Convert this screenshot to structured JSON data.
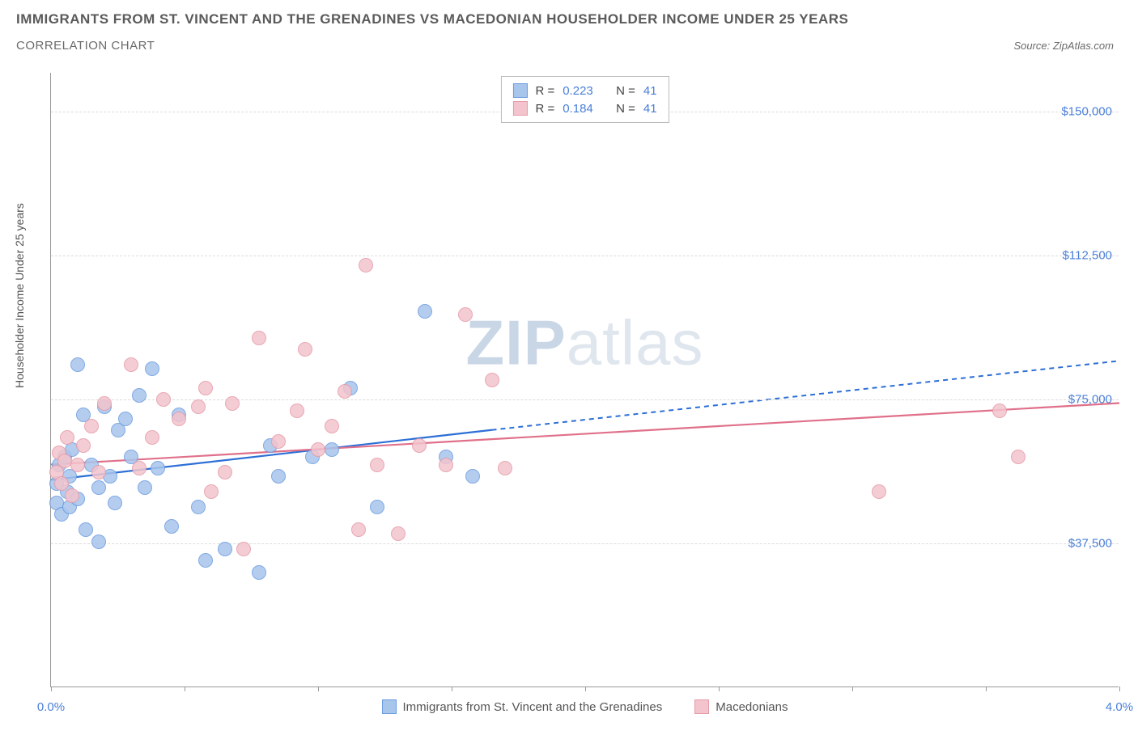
{
  "header": {
    "title": "IMMIGRANTS FROM ST. VINCENT AND THE GRENADINES VS MACEDONIAN HOUSEHOLDER INCOME UNDER 25 YEARS",
    "subtitle": "CORRELATION CHART",
    "source_prefix": "Source: ",
    "source_name": "ZipAtlas.com"
  },
  "chart": {
    "type": "scatter",
    "y_axis_label": "Householder Income Under 25 years",
    "xlim": [
      0,
      4.0
    ],
    "ylim": [
      0,
      160000
    ],
    "y_ticks": [
      {
        "v": 37500,
        "label": "$37,500"
      },
      {
        "v": 75000,
        "label": "$75,000"
      },
      {
        "v": 112500,
        "label": "$112,500"
      },
      {
        "v": 150000,
        "label": "$150,000"
      }
    ],
    "x_ticks": [
      0,
      0.5,
      1.0,
      1.5,
      2.0,
      2.5,
      3.0,
      3.5,
      4.0
    ],
    "x_tick_labels": {
      "0": "0.0%",
      "4": "4.0%"
    },
    "grid_color": "#dcdcdc",
    "background_color": "#ffffff",
    "point_radius": 9,
    "point_stroke_width": 1.5,
    "point_fill_opacity": 0.22,
    "series": [
      {
        "key": "svg",
        "label": "Immigrants from St. Vincent and the Grenadines",
        "stroke": "#6a9be0",
        "fill": "#a8c5ec",
        "line_color": "#2d6fd6",
        "trend": {
          "x1": 0,
          "y1": 54000,
          "x2": 1.65,
          "y2": 67000,
          "x2_ext": 4.0,
          "y2_ext": 85000
        },
        "R": "0.223",
        "N": "41",
        "points": [
          [
            0.02,
            48000
          ],
          [
            0.02,
            53000
          ],
          [
            0.03,
            58000
          ],
          [
            0.04,
            45000
          ],
          [
            0.05,
            60000
          ],
          [
            0.06,
            51000
          ],
          [
            0.07,
            55000
          ],
          [
            0.07,
            47000
          ],
          [
            0.08,
            62000
          ],
          [
            0.1,
            49000
          ],
          [
            0.1,
            84000
          ],
          [
            0.12,
            71000
          ],
          [
            0.13,
            41000
          ],
          [
            0.15,
            58000
          ],
          [
            0.18,
            38000
          ],
          [
            0.18,
            52000
          ],
          [
            0.2,
            73000
          ],
          [
            0.22,
            55000
          ],
          [
            0.24,
            48000
          ],
          [
            0.25,
            67000
          ],
          [
            0.28,
            70000
          ],
          [
            0.3,
            60000
          ],
          [
            0.33,
            76000
          ],
          [
            0.35,
            52000
          ],
          [
            0.38,
            83000
          ],
          [
            0.4,
            57000
          ],
          [
            0.45,
            42000
          ],
          [
            0.48,
            71000
          ],
          [
            0.55,
            47000
          ],
          [
            0.58,
            33000
          ],
          [
            0.65,
            36000
          ],
          [
            0.78,
            30000
          ],
          [
            0.82,
            63000
          ],
          [
            0.85,
            55000
          ],
          [
            0.98,
            60000
          ],
          [
            1.05,
            62000
          ],
          [
            1.12,
            78000
          ],
          [
            1.22,
            47000
          ],
          [
            1.4,
            98000
          ],
          [
            1.48,
            60000
          ],
          [
            1.58,
            55000
          ]
        ]
      },
      {
        "key": "mac",
        "label": "Macedonians",
        "stroke": "#e59aa8",
        "fill": "#f3c4cd",
        "line_color": "#e0708a",
        "trend": {
          "x1": 0,
          "y1": 58000,
          "x2": 4.0,
          "y2": 74000
        },
        "R": "0.184",
        "N": "41",
        "points": [
          [
            0.02,
            56000
          ],
          [
            0.03,
            61000
          ],
          [
            0.04,
            53000
          ],
          [
            0.05,
            59000
          ],
          [
            0.06,
            65000
          ],
          [
            0.08,
            50000
          ],
          [
            0.1,
            58000
          ],
          [
            0.12,
            63000
          ],
          [
            0.15,
            68000
          ],
          [
            0.18,
            56000
          ],
          [
            0.2,
            74000
          ],
          [
            0.3,
            84000
          ],
          [
            0.33,
            57000
          ],
          [
            0.38,
            65000
          ],
          [
            0.42,
            75000
          ],
          [
            0.48,
            70000
          ],
          [
            0.55,
            73000
          ],
          [
            0.58,
            78000
          ],
          [
            0.6,
            51000
          ],
          [
            0.65,
            56000
          ],
          [
            0.68,
            74000
          ],
          [
            0.72,
            36000
          ],
          [
            0.78,
            91000
          ],
          [
            0.85,
            64000
          ],
          [
            0.92,
            72000
          ],
          [
            0.95,
            88000
          ],
          [
            1.0,
            62000
          ],
          [
            1.05,
            68000
          ],
          [
            1.1,
            77000
          ],
          [
            1.15,
            41000
          ],
          [
            1.18,
            110000
          ],
          [
            1.22,
            58000
          ],
          [
            1.3,
            40000
          ],
          [
            1.38,
            63000
          ],
          [
            1.48,
            58000
          ],
          [
            1.55,
            97000
          ],
          [
            1.65,
            80000
          ],
          [
            1.7,
            57000
          ],
          [
            3.1,
            51000
          ],
          [
            3.55,
            72000
          ],
          [
            3.62,
            60000
          ]
        ]
      }
    ],
    "legend_top": {
      "R_label": "R =",
      "N_label": "N ="
    },
    "watermark": {
      "zip": "ZIP",
      "atlas": "atlas"
    }
  }
}
